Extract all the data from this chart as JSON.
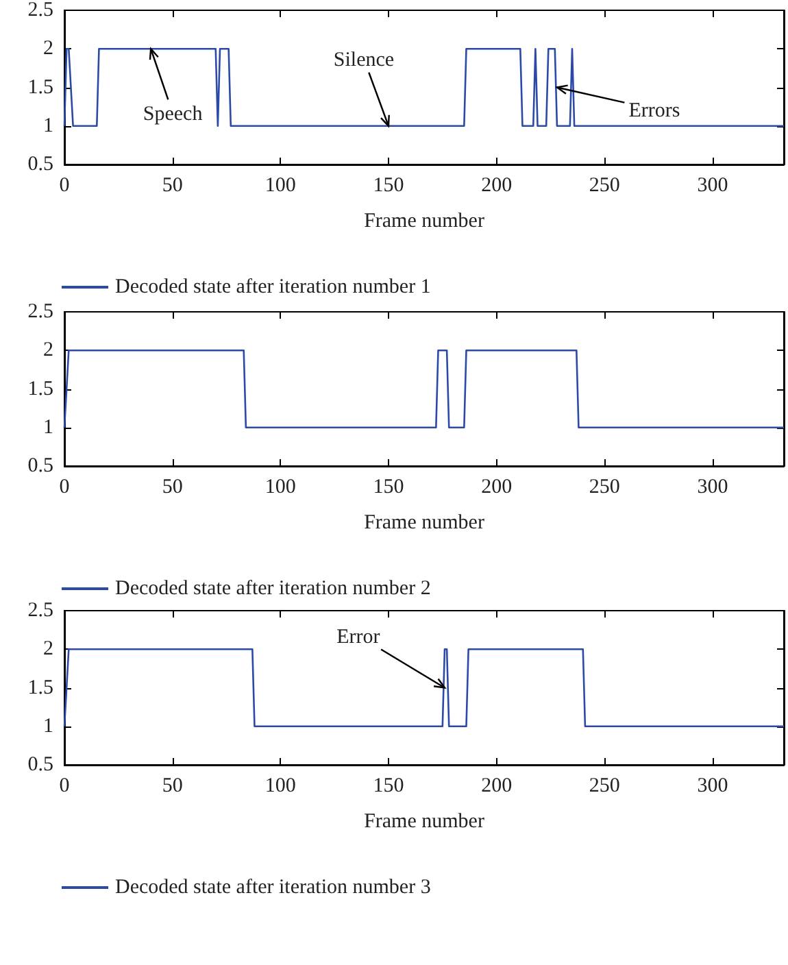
{
  "chart_data": [
    {
      "type": "line",
      "x": [
        0,
        1,
        2,
        4,
        15,
        16,
        70,
        71,
        72,
        76,
        77,
        185,
        186,
        211,
        212,
        217,
        218,
        219,
        223,
        224,
        227,
        228,
        234,
        235,
        236,
        333
      ],
      "series": [
        {
          "name": "Decoded state after iteration number 1",
          "color": "#2b4aa8",
          "values": [
            1,
            2,
            2,
            1,
            1,
            2,
            2,
            1,
            2,
            2,
            1,
            1,
            2,
            2,
            1,
            1,
            2,
            1,
            1,
            2,
            2,
            1,
            1,
            2,
            1,
            1
          ]
        }
      ],
      "xlim": [
        0,
        333
      ],
      "xticks": [
        0,
        50,
        100,
        150,
        200,
        250,
        300
      ],
      "ylim": [
        0.5,
        2.5
      ],
      "yticks": [
        0.5,
        1,
        1.5,
        2,
        2.5
      ],
      "xlabel": "Frame number",
      "legend": "bottom",
      "grid": false,
      "marker": "none",
      "line_style": "solid",
      "annotations": [
        {
          "text": "Speech",
          "x": 40,
          "y": 2
        },
        {
          "text": "Silence",
          "x": 150,
          "y": 1
        },
        {
          "text": "Errors",
          "x": 228,
          "y": 1.5
        }
      ]
    },
    {
      "type": "line",
      "x": [
        0,
        2,
        83,
        84,
        172,
        173,
        177,
        178,
        185,
        186,
        237,
        238,
        333
      ],
      "series": [
        {
          "name": "Decoded state after iteration number 2",
          "color": "#2b4aa8",
          "values": [
            1,
            2,
            2,
            1,
            1,
            2,
            2,
            1,
            1,
            2,
            2,
            1,
            1
          ]
        }
      ],
      "xlim": [
        0,
        333
      ],
      "xticks": [
        0,
        50,
        100,
        150,
        200,
        250,
        300
      ],
      "ylim": [
        0.5,
        2.5
      ],
      "yticks": [
        0.5,
        1,
        1.5,
        2,
        2.5
      ],
      "xlabel": "Frame number",
      "legend": "bottom",
      "grid": false,
      "marker": "none",
      "line_style": "solid"
    },
    {
      "type": "line",
      "x": [
        0,
        2,
        87,
        88,
        175,
        176,
        177,
        178,
        186,
        187,
        240,
        241,
        333
      ],
      "series": [
        {
          "name": "Decoded state after iteration number 3",
          "color": "#2b4aa8",
          "values": [
            1,
            2,
            2,
            1,
            1,
            2,
            2,
            1,
            1,
            2,
            2,
            1,
            1
          ]
        }
      ],
      "xlim": [
        0,
        333
      ],
      "xticks": [
        0,
        50,
        100,
        150,
        200,
        250,
        300
      ],
      "ylim": [
        0.5,
        2.5
      ],
      "yticks": [
        0.5,
        1,
        1.5,
        2,
        2.5
      ],
      "xlabel": "Frame number",
      "legend": "bottom",
      "grid": false,
      "marker": "none",
      "line_style": "solid",
      "annotations": [
        {
          "text": "Error",
          "x": 176,
          "y": 1.5
        }
      ]
    }
  ]
}
